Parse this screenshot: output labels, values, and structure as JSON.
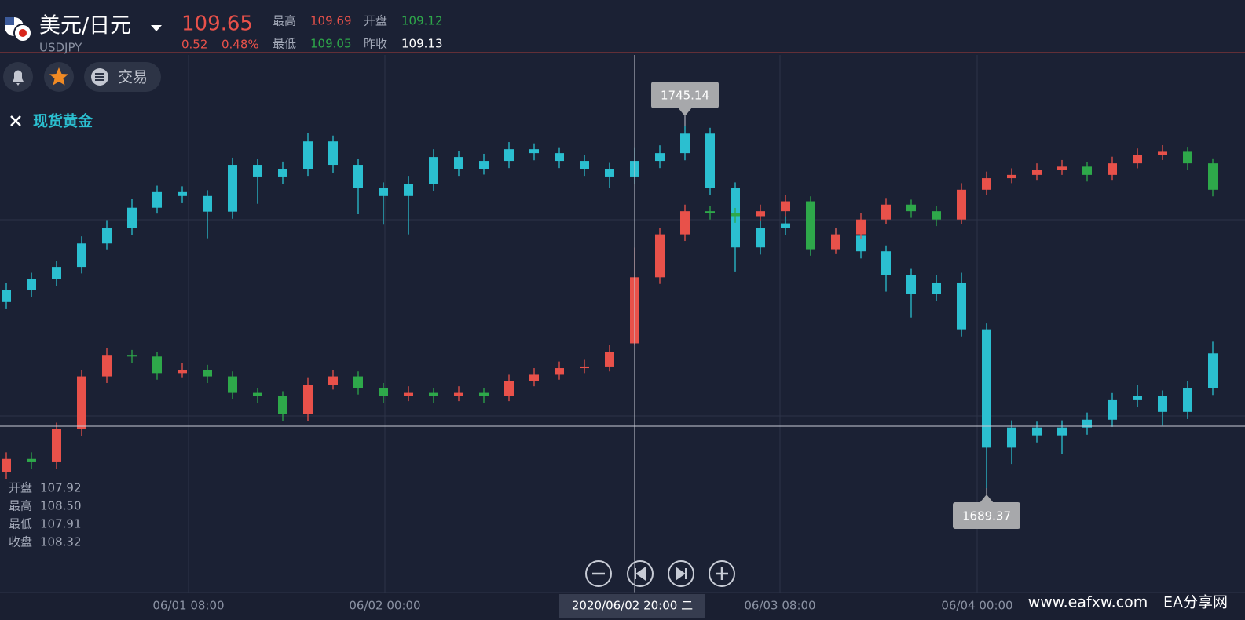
{
  "header": {
    "pair": "美元/日元",
    "price": "109.65",
    "change": "0.52",
    "change_pct": "0.48%",
    "stats": [
      {
        "label": "最高",
        "value": "109.69"
      },
      {
        "label": "开盘",
        "value": "109.12"
      },
      {
        "label": "最低",
        "value": "109.05"
      },
      {
        "label": "昨收",
        "value": "109.13"
      }
    ]
  },
  "toolbar": {
    "trade": "交易"
  },
  "chart_data": {
    "type": "candlestick",
    "x_labels": [
      "06/01 08:00",
      "06/02 00:00",
      "06/03 08:00",
      "06/04 00:00"
    ],
    "crosshair_label": "2020/06/02 20:00 二",
    "series": [
      {
        "name": "现货黄金",
        "color": "#2bbfd0",
        "ohlc": [
          [
            1718.0,
            1720.9,
            1716.9,
            1719.8
          ],
          [
            1719.8,
            1722.5,
            1718.8,
            1721.6
          ],
          [
            1721.6,
            1724.3,
            1720.5,
            1723.4
          ],
          [
            1723.4,
            1728.1,
            1722.4,
            1727.0
          ],
          [
            1727.0,
            1730.6,
            1726.1,
            1729.4
          ],
          [
            1729.4,
            1733.8,
            1728.3,
            1732.5
          ],
          [
            1732.5,
            1735.9,
            1731.6,
            1734.9
          ],
          [
            1734.9,
            1735.8,
            1733.2,
            1734.3
          ],
          [
            1734.3,
            1735.2,
            1727.8,
            1731.9
          ],
          [
            1731.9,
            1740.2,
            1730.8,
            1739.1
          ],
          [
            1739.1,
            1740.0,
            1733.1,
            1737.3
          ],
          [
            1737.3,
            1739.6,
            1736.2,
            1738.5
          ],
          [
            1738.5,
            1744.0,
            1737.4,
            1742.7
          ],
          [
            1742.7,
            1743.6,
            1737.9,
            1739.1
          ],
          [
            1739.1,
            1740.0,
            1731.5,
            1735.5
          ],
          [
            1735.5,
            1736.4,
            1729.9,
            1734.3
          ],
          [
            1734.3,
            1737.4,
            1728.4,
            1736.1
          ],
          [
            1736.1,
            1741.5,
            1735.0,
            1740.3
          ],
          [
            1740.3,
            1741.2,
            1737.4,
            1738.5
          ],
          [
            1738.5,
            1740.8,
            1737.6,
            1739.7
          ],
          [
            1739.7,
            1742.6,
            1738.6,
            1741.5
          ],
          [
            1741.5,
            1742.4,
            1739.8,
            1740.9
          ],
          [
            1740.9,
            1741.8,
            1738.6,
            1739.7
          ],
          [
            1739.7,
            1740.6,
            1737.4,
            1738.5
          ],
          [
            1738.5,
            1739.4,
            1735.6,
            1737.3
          ],
          [
            1737.3,
            1741.8,
            1736.2,
            1739.7
          ],
          [
            1739.7,
            1742.1,
            1738.6,
            1740.9
          ],
          [
            1740.9,
            1745.14,
            1739.8,
            1743.9
          ],
          [
            1743.9,
            1744.8,
            1734.4,
            1735.5
          ],
          [
            1735.5,
            1736.4,
            1722.7,
            1726.4
          ],
          [
            1726.4,
            1730.5,
            1725.3,
            1729.4
          ],
          [
            1729.4,
            1731.2,
            1728.3,
            1730.1
          ],
          [
            1730.1,
            1731.0,
            1725.2,
            1727.0
          ],
          [
            1727.0,
            1729.3,
            1725.9,
            1728.2
          ],
          [
            1728.2,
            1729.1,
            1724.7,
            1725.8
          ],
          [
            1725.8,
            1726.7,
            1719.6,
            1722.2
          ],
          [
            1722.2,
            1723.1,
            1715.6,
            1719.2
          ],
          [
            1719.2,
            1722.1,
            1718.1,
            1721.0
          ],
          [
            1721.0,
            1722.5,
            1712.7,
            1713.8
          ],
          [
            1713.8,
            1714.7,
            1689.37,
            1695.6
          ],
          [
            1695.6,
            1699.8,
            1693.1,
            1698.7
          ],
          [
            1698.7,
            1699.6,
            1696.4,
            1697.5
          ],
          [
            1697.5,
            1699.8,
            1694.6,
            1698.7
          ],
          [
            1698.7,
            1701.0,
            1697.6,
            1699.9
          ],
          [
            1699.9,
            1704.0,
            1698.8,
            1702.9
          ],
          [
            1702.9,
            1705.2,
            1701.8,
            1703.5
          ],
          [
            1703.5,
            1704.4,
            1699.0,
            1701.1
          ],
          [
            1701.1,
            1705.9,
            1700.0,
            1704.8
          ],
          [
            1704.8,
            1711.9,
            1703.7,
            1710.1
          ]
        ]
      },
      {
        "name": "USDJPY",
        "up_color": "#e8514a",
        "down_color": "#2ea84a",
        "ohlc": [
          [
            107.14,
            107.26,
            107.1,
            107.22
          ],
          [
            107.22,
            107.26,
            107.16,
            107.2
          ],
          [
            107.2,
            107.44,
            107.16,
            107.4
          ],
          [
            107.4,
            107.76,
            107.36,
            107.72
          ],
          [
            107.72,
            107.89,
            107.68,
            107.85
          ],
          [
            107.85,
            107.88,
            107.8,
            107.84
          ],
          [
            107.84,
            107.87,
            107.7,
            107.74
          ],
          [
            107.74,
            107.8,
            107.71,
            107.76
          ],
          [
            107.76,
            107.79,
            107.68,
            107.72
          ],
          [
            107.72,
            107.75,
            107.58,
            107.62
          ],
          [
            107.62,
            107.65,
            107.56,
            107.6
          ],
          [
            107.6,
            107.63,
            107.45,
            107.49
          ],
          [
            107.49,
            107.71,
            107.45,
            107.67
          ],
          [
            107.67,
            107.76,
            107.64,
            107.72
          ],
          [
            107.72,
            107.75,
            107.61,
            107.65
          ],
          [
            107.65,
            107.68,
            107.56,
            107.6
          ],
          [
            107.6,
            107.66,
            107.57,
            107.62
          ],
          [
            107.62,
            107.65,
            107.56,
            107.6
          ],
          [
            107.6,
            107.66,
            107.57,
            107.62
          ],
          [
            107.62,
            107.65,
            107.56,
            107.6
          ],
          [
            107.6,
            107.73,
            107.57,
            107.69
          ],
          [
            107.69,
            107.77,
            107.66,
            107.73
          ],
          [
            107.73,
            107.81,
            107.7,
            107.77
          ],
          [
            107.77,
            107.82,
            107.74,
            107.78
          ],
          [
            107.78,
            107.91,
            107.75,
            107.87
          ],
          [
            107.92,
            108.5,
            107.91,
            108.32
          ],
          [
            108.32,
            108.62,
            108.28,
            108.58
          ],
          [
            108.58,
            108.76,
            108.54,
            108.72
          ],
          [
            108.72,
            108.75,
            108.67,
            108.71
          ],
          [
            108.71,
            108.74,
            108.65,
            108.69
          ],
          [
            108.69,
            108.76,
            108.66,
            108.72
          ],
          [
            108.72,
            108.82,
            108.69,
            108.78
          ],
          [
            108.78,
            108.81,
            108.45,
            108.49
          ],
          [
            108.49,
            108.62,
            108.46,
            108.58
          ],
          [
            108.58,
            108.71,
            108.55,
            108.67
          ],
          [
            108.67,
            108.8,
            108.64,
            108.76
          ],
          [
            108.76,
            108.79,
            108.68,
            108.72
          ],
          [
            108.72,
            108.75,
            108.63,
            108.67
          ],
          [
            108.67,
            108.89,
            108.64,
            108.85
          ],
          [
            108.85,
            108.96,
            108.82,
            108.92
          ],
          [
            108.92,
            108.98,
            108.89,
            108.94
          ],
          [
            108.94,
            109.01,
            108.91,
            108.97
          ],
          [
            108.97,
            109.03,
            108.94,
            108.99
          ],
          [
            108.99,
            109.02,
            108.9,
            108.94
          ],
          [
            108.94,
            109.05,
            108.91,
            109.01
          ],
          [
            109.01,
            109.1,
            108.98,
            109.06
          ],
          [
            109.06,
            109.12,
            109.03,
            109.08
          ],
          [
            109.08,
            109.11,
            108.97,
            109.01
          ],
          [
            109.01,
            109.04,
            108.81,
            108.85
          ]
        ]
      }
    ]
  },
  "crosshair_panel": [
    {
      "label": "开盘",
      "value": "107.92"
    },
    {
      "label": "最高",
      "value": "108.50"
    },
    {
      "label": "最低",
      "value": "107.91"
    },
    {
      "label": "收盘",
      "value": "108.32"
    }
  ],
  "watermark": {
    "site": "www.eafxw.com",
    "brand": "EA分享网"
  }
}
